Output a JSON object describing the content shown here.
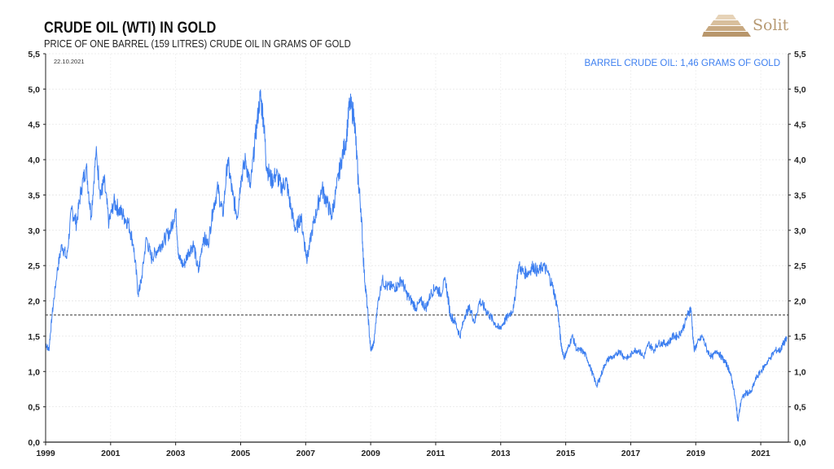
{
  "header": {
    "title": "CRUDE OIL (WTI) IN GOLD",
    "subtitle": "PRICE OF ONE BARREL (159 LITRES) CRUDE OIL IN GRAMS OF GOLD",
    "date": "22.10.2021",
    "annotation": "BARREL CRUDE OIL: 1,46 GRAMS OF  GOLD"
  },
  "brand": {
    "name": "Solit",
    "color": "#b79a73",
    "logo_icon": "pyramid-logo-icon"
  },
  "chart_data": {
    "type": "line",
    "title": "CRUDE OIL (WTI) IN GOLD",
    "subtitle": "PRICE OF ONE BARREL (159 LITRES) CRUDE OIL IN GRAMS OF GOLD",
    "xlabel": "",
    "ylabel": "",
    "xlim": [
      1999.0,
      2021.85
    ],
    "ylim": [
      0,
      5.5
    ],
    "x_ticks": [
      1999,
      2001,
      2003,
      2005,
      2007,
      2009,
      2011,
      2013,
      2015,
      2017,
      2019,
      2021
    ],
    "y_ticks": [
      "0,0",
      "0,5",
      "1,0",
      "1,5",
      "2,0",
      "2,5",
      "3,0",
      "3,5",
      "4,0",
      "4,5",
      "5,0",
      "5,5"
    ],
    "y_tick_values": [
      0,
      0.5,
      1,
      1.5,
      2,
      2.5,
      3,
      3.5,
      4,
      4.5,
      5,
      5.5
    ],
    "y_axis_sides": [
      "left",
      "right"
    ],
    "grid": true,
    "reference_line": {
      "value": 1.8,
      "style": "dashed",
      "color": "#333333"
    },
    "series_color": "#3d7ff0",
    "series": [
      {
        "name": "",
        "x": [
          1999.0,
          1999.1,
          1999.2,
          1999.35,
          1999.5,
          1999.65,
          1999.8,
          1999.95,
          2000.1,
          2000.25,
          2000.4,
          2000.55,
          2000.7,
          2000.8,
          2000.95,
          2001.1,
          2001.25,
          2001.4,
          2001.55,
          2001.7,
          2001.85,
          2001.95,
          2002.1,
          2002.25,
          2002.4,
          2002.55,
          2002.7,
          2002.85,
          2003.0,
          2003.1,
          2003.25,
          2003.4,
          2003.55,
          2003.7,
          2003.85,
          2004.0,
          2004.15,
          2004.3,
          2004.45,
          2004.6,
          2004.75,
          2004.9,
          2005.0,
          2005.15,
          2005.3,
          2005.45,
          2005.6,
          2005.7,
          2005.8,
          2005.95,
          2006.1,
          2006.25,
          2006.4,
          2006.55,
          2006.7,
          2006.85,
          2007.0,
          2007.05,
          2007.2,
          2007.35,
          2007.5,
          2007.65,
          2007.8,
          2007.95,
          2008.1,
          2008.25,
          2008.35,
          2008.5,
          2008.6,
          2008.7,
          2008.8,
          2008.9,
          2009.0,
          2009.1,
          2009.2,
          2009.35,
          2009.5,
          2009.65,
          2009.8,
          2009.95,
          2010.1,
          2010.25,
          2010.4,
          2010.55,
          2010.7,
          2010.85,
          2011.0,
          2011.15,
          2011.3,
          2011.45,
          2011.6,
          2011.75,
          2011.9,
          2012.05,
          2012.2,
          2012.35,
          2012.5,
          2012.65,
          2012.8,
          2012.95,
          2013.1,
          2013.25,
          2013.4,
          2013.55,
          2013.7,
          2013.85,
          2014.0,
          2014.15,
          2014.3,
          2014.45,
          2014.6,
          2014.75,
          2014.85,
          2014.95,
          2015.05,
          2015.2,
          2015.35,
          2015.5,
          2015.65,
          2015.8,
          2015.95,
          2016.05,
          2016.2,
          2016.35,
          2016.5,
          2016.65,
          2016.8,
          2016.95,
          2017.1,
          2017.25,
          2017.4,
          2017.55,
          2017.7,
          2017.85,
          2018.0,
          2018.15,
          2018.3,
          2018.45,
          2018.6,
          2018.75,
          2018.85,
          2018.95,
          2019.05,
          2019.2,
          2019.35,
          2019.5,
          2019.65,
          2019.8,
          2019.95,
          2020.05,
          2020.15,
          2020.25,
          2020.3,
          2020.4,
          2020.55,
          2020.7,
          2020.85,
          2021.0,
          2021.15,
          2021.3,
          2021.45,
          2021.6,
          2021.7,
          2021.8
        ],
        "values": [
          1.4,
          1.3,
          1.8,
          2.4,
          2.8,
          2.6,
          3.3,
          3.1,
          3.6,
          3.9,
          3.2,
          4.1,
          3.5,
          3.7,
          3.1,
          3.4,
          3.3,
          3.2,
          3.1,
          2.8,
          2.1,
          2.3,
          2.9,
          2.6,
          2.7,
          2.8,
          2.9,
          3.0,
          3.3,
          2.6,
          2.5,
          2.7,
          2.8,
          2.4,
          2.9,
          2.8,
          3.3,
          3.6,
          3.2,
          4.0,
          3.5,
          3.2,
          3.7,
          4.0,
          3.6,
          4.3,
          4.9,
          4.6,
          3.9,
          3.7,
          3.8,
          3.6,
          3.7,
          3.3,
          3.0,
          3.2,
          2.7,
          2.6,
          3.0,
          3.3,
          3.6,
          3.4,
          3.2,
          3.6,
          4.0,
          4.3,
          4.8,
          4.6,
          3.8,
          3.3,
          2.4,
          1.9,
          1.3,
          1.4,
          1.9,
          2.3,
          2.2,
          2.2,
          2.2,
          2.3,
          2.1,
          2.0,
          1.9,
          2.0,
          1.9,
          2.1,
          2.2,
          2.1,
          2.3,
          1.8,
          1.7,
          1.5,
          1.8,
          1.9,
          1.7,
          2.0,
          1.9,
          1.8,
          1.7,
          1.6,
          1.7,
          1.8,
          1.9,
          2.5,
          2.4,
          2.4,
          2.5,
          2.4,
          2.5,
          2.4,
          2.2,
          1.9,
          1.4,
          1.2,
          1.3,
          1.5,
          1.3,
          1.3,
          1.2,
          1.0,
          0.8,
          0.9,
          1.1,
          1.2,
          1.2,
          1.3,
          1.2,
          1.2,
          1.3,
          1.3,
          1.2,
          1.4,
          1.3,
          1.4,
          1.4,
          1.4,
          1.5,
          1.5,
          1.6,
          1.8,
          1.9,
          1.3,
          1.4,
          1.5,
          1.3,
          1.2,
          1.3,
          1.2,
          1.1,
          1.0,
          0.8,
          0.5,
          0.3,
          0.6,
          0.7,
          0.7,
          0.9,
          1.0,
          1.1,
          1.2,
          1.3,
          1.3,
          1.4,
          1.46
        ]
      }
    ]
  }
}
